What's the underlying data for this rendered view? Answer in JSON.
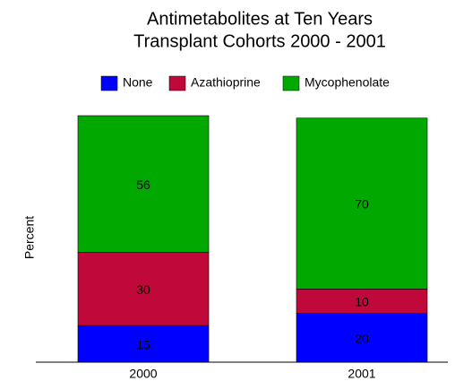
{
  "chart_data": {
    "type": "stacked_bar",
    "title": [
      "Antimetabolites at Ten Years",
      "Transplant Cohorts 2000 - 2001"
    ],
    "y_label": "Percent",
    "categories": [
      "2000",
      "2001"
    ],
    "series": [
      {
        "name": "None",
        "color": "#0000ff",
        "values": [
          15,
          20
        ]
      },
      {
        "name": "Azathioprine",
        "color": "#c0083a",
        "values": [
          30,
          10
        ]
      },
      {
        "name": "Mycophenolate",
        "color": "#00a800",
        "values": [
          56,
          70
        ]
      }
    ],
    "value_label_color": "#ffd700",
    "ylim": [
      0,
      101
    ],
    "legend": "top"
  }
}
